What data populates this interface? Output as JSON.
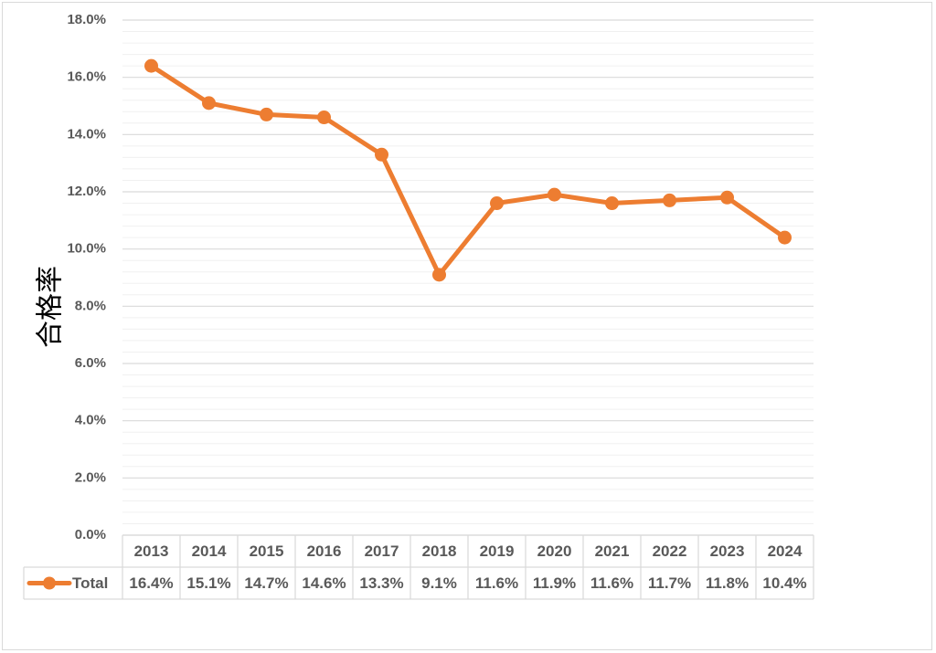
{
  "chart_data": {
    "type": "line",
    "ylabel": "合格率",
    "ylim": [
      0,
      18
    ],
    "y_tick_labels": [
      "0.0%",
      "2.0%",
      "4.0%",
      "6.0%",
      "8.0%",
      "10.0%",
      "12.0%",
      "14.0%",
      "16.0%",
      "18.0%"
    ],
    "y_major_step": 2,
    "y_minor_step": 0.4,
    "grid": true,
    "categories": [
      "2013",
      "2014",
      "2015",
      "2016",
      "2017",
      "2018",
      "2019",
      "2020",
      "2021",
      "2022",
      "2023",
      "2024"
    ],
    "series": [
      {
        "name": "Total",
        "values": [
          16.4,
          15.1,
          14.7,
          14.6,
          13.3,
          9.1,
          11.6,
          11.9,
          11.6,
          11.7,
          11.8,
          10.4
        ],
        "labels": [
          "16.4%",
          "15.1%",
          "14.7%",
          "14.6%",
          "13.3%",
          "9.1%",
          "11.6%",
          "11.9%",
          "11.6%",
          "11.7%",
          "11.8%",
          "10.4%"
        ],
        "color": "#ED7D31"
      }
    ],
    "legend": "data-table",
    "colors": {
      "major_grid": "#d9d9d9",
      "minor_grid": "#f0f0f0",
      "text": "#595959",
      "table_border": "#d9d9d9"
    }
  }
}
